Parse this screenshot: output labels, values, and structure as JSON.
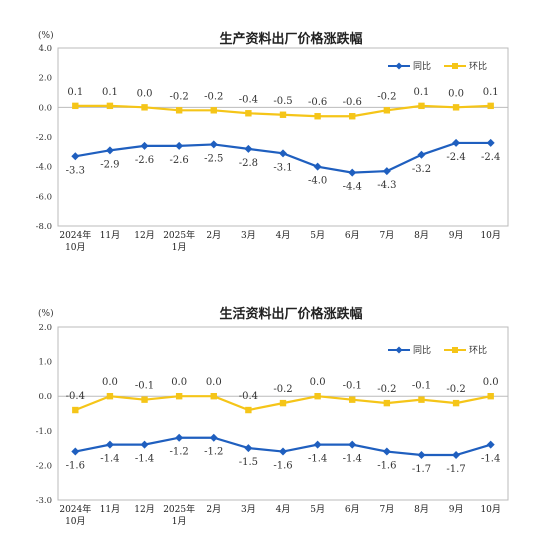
{
  "charts": [
    {
      "type": "line",
      "title": "生产资料出厂价格涨跌幅",
      "unit": "(%)",
      "categories": [
        [
          "2024年",
          "10月"
        ],
        [
          "11月"
        ],
        [
          "12月"
        ],
        [
          "2025年",
          "1月"
        ],
        [
          "2月"
        ],
        [
          "3月"
        ],
        [
          "4月"
        ],
        [
          "5月"
        ],
        [
          "6月"
        ],
        [
          "7月"
        ],
        [
          "8月"
        ],
        [
          "9月"
        ],
        [
          "10月"
        ]
      ],
      "ylim": [
        -8.0,
        4.0
      ],
      "yticks": [
        "4.0",
        "2.0",
        "0.0",
        "-2.0",
        "-4.0",
        "-6.0",
        "-8.0"
      ],
      "ytick_values": [
        4,
        2,
        0,
        -2,
        -4,
        -6,
        -8
      ],
      "legend_placement": "top-right",
      "series": [
        {
          "name": "同比",
          "color": "#1f5fbf",
          "marker": "diamond",
          "values": [
            -3.3,
            -2.9,
            -2.6,
            -2.6,
            -2.5,
            -2.8,
            -3.1,
            -4.0,
            -4.4,
            -4.3,
            -3.2,
            -2.4,
            -2.4
          ],
          "labels": [
            "-3.3",
            "-2.9",
            "-2.6",
            "-2.6",
            "-2.5",
            "-2.8",
            "-3.1",
            "-4.0",
            "-4.4",
            "-4.3",
            "-3.2",
            "-2.4",
            "-2.4"
          ],
          "label_pos": "below"
        },
        {
          "name": "环比",
          "color": "#f5c518",
          "marker": "square",
          "values": [
            0.1,
            0.1,
            0.0,
            -0.2,
            -0.2,
            -0.4,
            -0.5,
            -0.6,
            -0.6,
            -0.2,
            0.1,
            0.0,
            0.1
          ],
          "labels": [
            "0.1",
            "0.1",
            "0.0",
            "-0.2",
            "-0.2",
            "-0.4",
            "-0.5",
            "-0.6",
            "-0.6",
            "-0.2",
            "0.1",
            "0.0",
            "0.1"
          ],
          "label_pos": "above"
        }
      ]
    },
    {
      "type": "line",
      "title": "生活资料出厂价格涨跌幅",
      "unit": "(%)",
      "categories": [
        [
          "2024年",
          "10月"
        ],
        [
          "11月"
        ],
        [
          "12月"
        ],
        [
          "2025年",
          "1月"
        ],
        [
          "2月"
        ],
        [
          "3月"
        ],
        [
          "4月"
        ],
        [
          "5月"
        ],
        [
          "6月"
        ],
        [
          "7月"
        ],
        [
          "8月"
        ],
        [
          "9月"
        ],
        [
          "10月"
        ]
      ],
      "ylim": [
        -3.0,
        2.0
      ],
      "yticks": [
        "2.0",
        "1.0",
        "0.0",
        "-1.0",
        "-2.0",
        "-3.0"
      ],
      "ytick_values": [
        2,
        1,
        0,
        -1,
        -2,
        -3
      ],
      "legend_placement": "top-right",
      "series": [
        {
          "name": "同比",
          "color": "#1f5fbf",
          "marker": "diamond",
          "values": [
            -1.6,
            -1.4,
            -1.4,
            -1.2,
            -1.2,
            -1.5,
            -1.6,
            -1.4,
            -1.4,
            -1.6,
            -1.7,
            -1.7,
            -1.4
          ],
          "labels": [
            "-1.6",
            "-1.4",
            "-1.4",
            "-1.2",
            "-1.2",
            "-1.5",
            "-1.6",
            "-1.4",
            "-1.4",
            "-1.6",
            "-1.7",
            "-1.7",
            "-1.4"
          ],
          "label_pos": "below"
        },
        {
          "name": "环比",
          "color": "#f5c518",
          "marker": "square",
          "values": [
            -0.4,
            0.0,
            -0.1,
            0.0,
            0.0,
            -0.4,
            -0.2,
            0.0,
            -0.1,
            -0.2,
            -0.1,
            -0.2,
            0.0
          ],
          "labels": [
            "-0.4",
            "0.0",
            "-0.1",
            "0.0",
            "0.0",
            "-0.4",
            "-0.2",
            "0.0",
            "-0.1",
            "-0.2",
            "-0.1",
            "-0.2",
            "0.0"
          ],
          "label_pos": "above"
        }
      ]
    }
  ]
}
